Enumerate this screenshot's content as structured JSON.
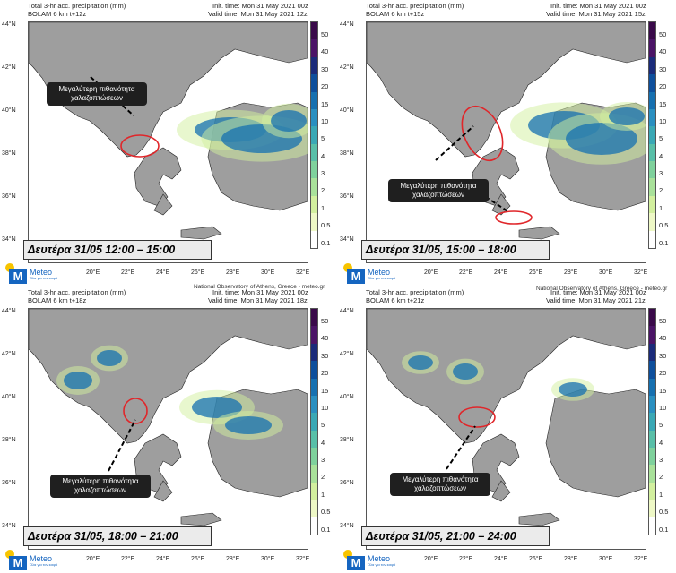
{
  "panels": [
    {
      "title1": "Total 3-hr acc. precipitation (mm)",
      "title2": "BOLAM 6 km t+12z",
      "init": "Init. time: Mon 31 May 2021 00z",
      "valid": "Valid time: Mon 31 May 2021 12z",
      "date_label": "Δευτέρα 31/05 12:00 – 15:00",
      "callout": "Μεγαλύτερη πιθανότητα χαλαζοπτώσεων"
    },
    {
      "title1": "Total 3-hr acc. precipitation (mm)",
      "title2": "BOLAM 6 km t+15z",
      "init": "Init. time: Mon 31 May 2021 00z",
      "valid": "Valid time: Mon 31 May 2021 15z",
      "date_label": "Δευτέρα 31/05, 15:00 – 18:00",
      "callout": "Μεγαλύτερη πιθανότητα χαλαζοπτώσεων"
    },
    {
      "title1": "Total 3-hr acc. precipitation (mm)",
      "title2": "BOLAM 6 km t+18z",
      "init": "Init. time: Mon 31 May 2021 00z",
      "valid": "Valid time: Mon 31 May 2021 18z",
      "date_label": "Δευτέρα 31/05, 18:00 – 21:00",
      "callout": "Μεγαλύτερη πιθανότητα χαλαζοπτώσεων"
    },
    {
      "title1": "Total 3-hr acc. precipitation (mm)",
      "title2": "BOLAM 6 km t+21z",
      "init": "Init. time: Mon 31 May 2021 00z",
      "valid": "Valid time: Mon 31 May 2021 21z",
      "date_label": "Δευτέρα 31/05, 21:00 – 24:00",
      "callout": "Μεγαλύτερη πιθανότητα χαλαζοπτώσεων"
    }
  ],
  "credit": "National Observatory of Athens, Greece - meteo.gr",
  "credit2": "National Observatory of Athens, Greece - meteo.gr",
  "logo": {
    "brand": "Meteo",
    "m": "M",
    "tagline": "Όλα για τον καιρό"
  },
  "lat_labels": [
    "44°N",
    "42°N",
    "40°N",
    "38°N",
    "36°N",
    "34°N"
  ],
  "lon_labels": [
    "20°E",
    "22°E",
    "24°E",
    "26°E",
    "28°E",
    "30°E",
    "32°E"
  ],
  "colorbar": {
    "levels": [
      "50",
      "40",
      "30",
      "20",
      "15",
      "10",
      "5",
      "4",
      "3",
      "2",
      "1",
      "0.5",
      "0.1"
    ],
    "colors": [
      "#3a0a4a",
      "#4b1466",
      "#1b2b7a",
      "#0e4f9c",
      "#1670b0",
      "#2a8fc0",
      "#3aa8b5",
      "#59bfa8",
      "#7fd19c",
      "#a9e19a",
      "#d2ef9e",
      "#eef8c6",
      "#ffffff"
    ]
  },
  "map_colors": {
    "land": "#9e9e9e",
    "sea": "#ffffff",
    "coast": "#222222",
    "highlight": "#e0262a"
  }
}
